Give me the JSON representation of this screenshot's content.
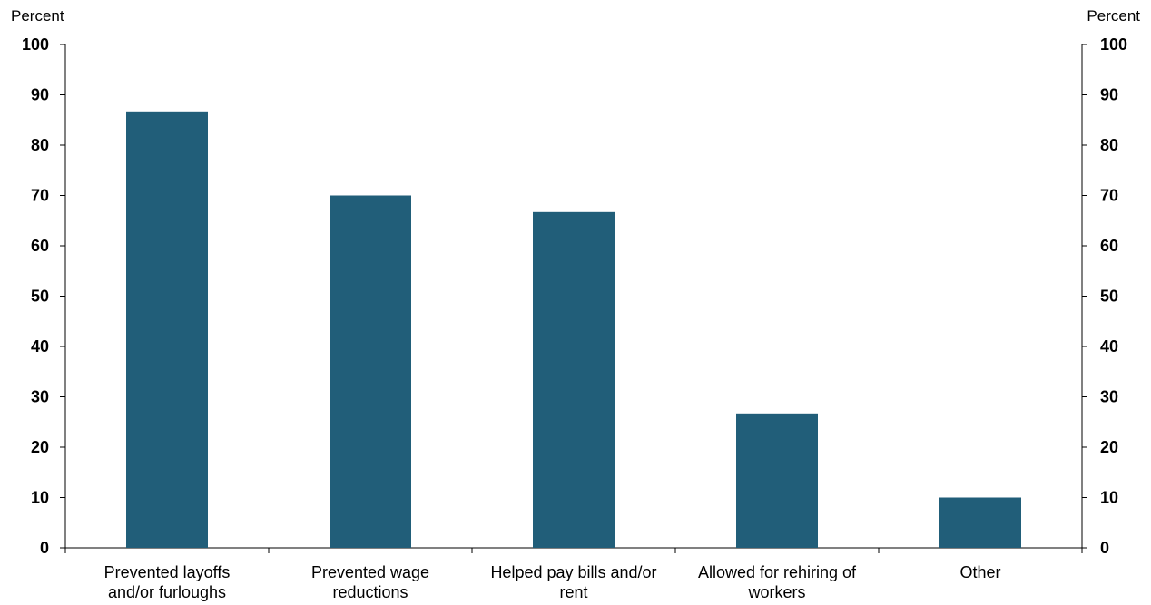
{
  "chart_data": {
    "type": "bar",
    "left_axis_unit": "Percent",
    "right_axis_unit": "Percent",
    "categories": [
      [
        "Prevented layoffs",
        "and/or furloughs"
      ],
      [
        "Prevented wage",
        "reductions"
      ],
      [
        "Helped pay bills and/or",
        "rent"
      ],
      [
        "Allowed for rehiring of",
        "workers"
      ],
      [
        "Other"
      ]
    ],
    "values": [
      86.7,
      70.0,
      66.7,
      26.7,
      10.0
    ],
    "ylim": [
      0,
      100
    ],
    "yticks": [
      0,
      10,
      20,
      30,
      40,
      50,
      60,
      70,
      80,
      90,
      100
    ],
    "bar_color": "#215e79",
    "axis_color": "#000000",
    "grid": false,
    "legend": "none"
  }
}
